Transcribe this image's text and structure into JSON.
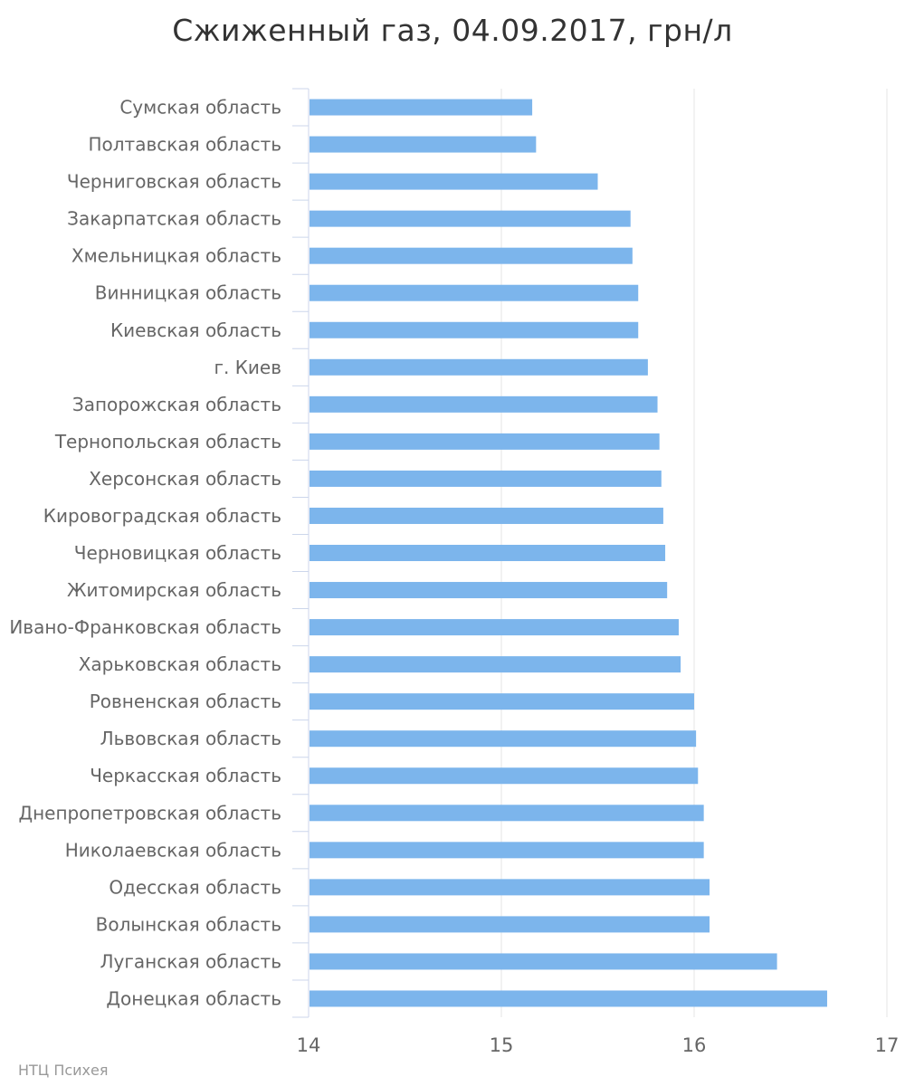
{
  "chart_data": {
    "type": "bar",
    "orientation": "horizontal",
    "title": "Сжиженный газ, 04.09.2017, грн/л",
    "xlim": [
      14,
      17
    ],
    "ticks": [
      14,
      15,
      16,
      17
    ],
    "grid": true,
    "bar_color": "#7cb5ec",
    "categories": [
      "Сумская область",
      "Полтавская область",
      "Черниговская область",
      "Закарпатская область",
      "Хмельницкая область",
      "Винницкая область",
      "Киевская область",
      "г. Киев",
      "Запорожская область",
      "Тернопольская область",
      "Херсонская область",
      "Кировоградская область",
      "Черновицкая область",
      "Житомирская область",
      "Ивано-Франковская область",
      "Харьковская область",
      "Ровненская область",
      "Львовская область",
      "Черкасская область",
      "Днепропетровская область",
      "Николаевская область",
      "Одесская область",
      "Волынская область",
      "Луганская область",
      "Донецкая область"
    ],
    "values": [
      15.16,
      15.18,
      15.5,
      15.67,
      15.68,
      15.71,
      15.71,
      15.76,
      15.81,
      15.82,
      15.83,
      15.84,
      15.85,
      15.86,
      15.92,
      15.93,
      16.0,
      16.01,
      16.02,
      16.05,
      16.05,
      16.08,
      16.08,
      16.43,
      16.69
    ]
  },
  "credit": "НТЦ Психея"
}
